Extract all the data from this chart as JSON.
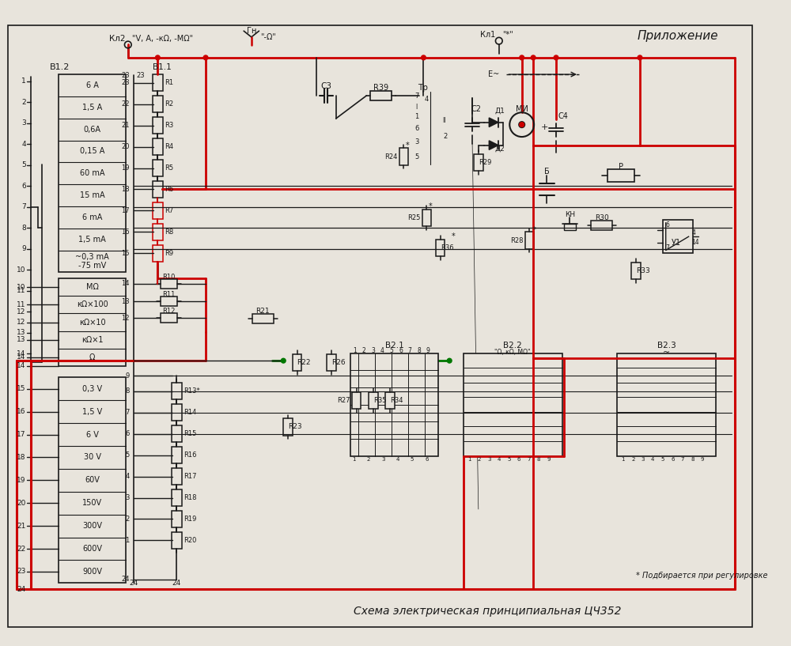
{
  "title": "Схема электрическая принципиальная ЦЧ352",
  "bg_color": "#e8e4dc",
  "line_color_black": "#1a1a1a",
  "line_color_red": "#cc0000",
  "line_color_green": "#007700",
  "annotation_text": "* Подбирается при регулировке",
  "prilozhenie_text": "Приложение",
  "left_panel_items_top": [
    "6 А",
    "1,5 А",
    "0,6А",
    "0,15 А",
    "60 mА",
    "15 mА",
    "6 mА",
    "1,5 mА",
    "~0,3 mА\n-75 mV"
  ],
  "left_panel_items_mid": [
    "МΩ",
    "кΩ×100",
    "кΩ×10",
    "кΩ×1",
    "Ω"
  ],
  "left_panel_items_bot": [
    "0,3 V",
    "1,5 V",
    "6 V",
    "30 V",
    "60V",
    "150V",
    "300V",
    "600V",
    "900V"
  ]
}
